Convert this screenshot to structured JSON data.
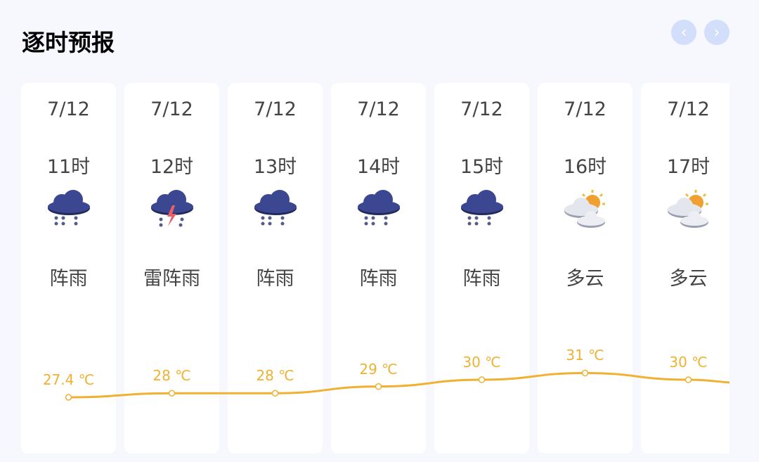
{
  "header": {
    "title": "逐时预报",
    "prev_icon": "chevron-left-icon",
    "next_icon": "chevron-right-icon"
  },
  "colors": {
    "line": "#f0b132",
    "nav": "#d3defa",
    "card": "#ffffff"
  },
  "hours": [
    {
      "date": "7/12",
      "hour": "11时",
      "icon": "shower-rain",
      "desc": "阵雨",
      "temp": 27.4,
      "temp_label": "27.4 ℃"
    },
    {
      "date": "7/12",
      "hour": "12时",
      "icon": "thunder-shower",
      "desc": "雷阵雨",
      "temp": 28,
      "temp_label": "28 ℃"
    },
    {
      "date": "7/12",
      "hour": "13时",
      "icon": "shower-rain",
      "desc": "阵雨",
      "temp": 28,
      "temp_label": "28 ℃"
    },
    {
      "date": "7/12",
      "hour": "14时",
      "icon": "shower-rain",
      "desc": "阵雨",
      "temp": 29,
      "temp_label": "29 ℃"
    },
    {
      "date": "7/12",
      "hour": "15时",
      "icon": "shower-rain",
      "desc": "阵雨",
      "temp": 30,
      "temp_label": "30 ℃"
    },
    {
      "date": "7/12",
      "hour": "16时",
      "icon": "partly-cloudy",
      "desc": "多云",
      "temp": 31,
      "temp_label": "31 ℃"
    },
    {
      "date": "7/12",
      "hour": "17时",
      "icon": "partly-cloudy",
      "desc": "多云",
      "temp": 30,
      "temp_label": "30 ℃"
    }
  ]
}
